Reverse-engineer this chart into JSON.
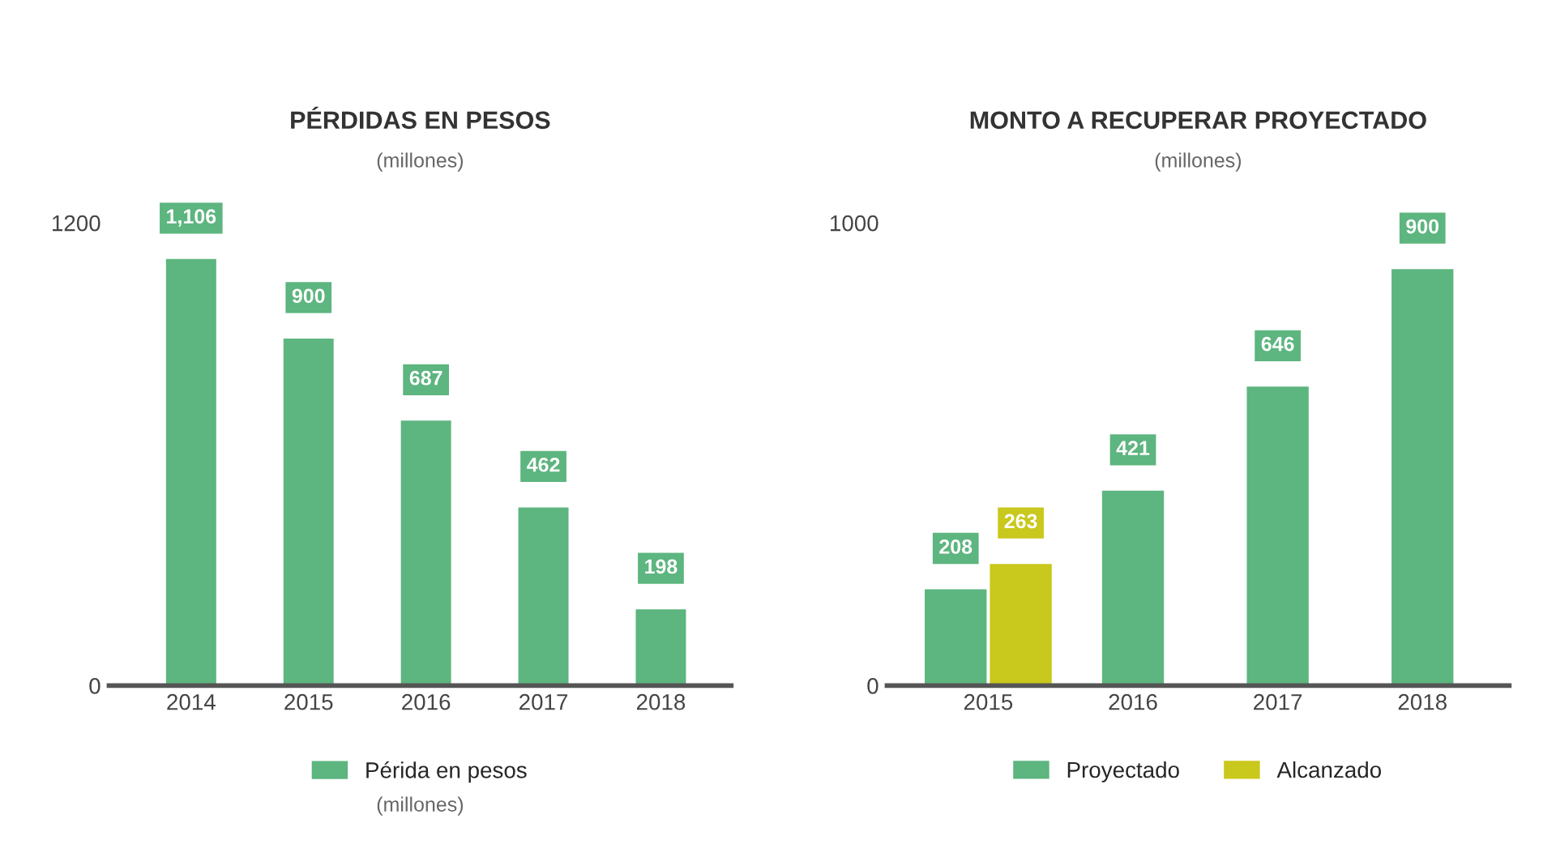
{
  "chart_data": [
    {
      "type": "bar",
      "title": "PÉRDIDAS EN PESOS",
      "subtitle": "(millones)",
      "categories": [
        "2014",
        "2015",
        "2016",
        "2017",
        "2018"
      ],
      "series": [
        {
          "name": "Périda en pesos",
          "color": "#5db57f",
          "values": [
            1106,
            900,
            687,
            462,
            198
          ],
          "value_labels": [
            "1,106",
            "900",
            "687",
            "462",
            "198"
          ]
        }
      ],
      "ylim": [
        0,
        1200
      ],
      "yticks": [
        0,
        1200
      ],
      "legend": "bottom",
      "grid": false,
      "annotations": [
        "(millones)"
      ]
    },
    {
      "type": "bar",
      "title": "MONTO A RECUPERAR PROYECTADO",
      "subtitle": "(millones)",
      "categories": [
        "2015",
        "2016",
        "2017",
        "2018"
      ],
      "series": [
        {
          "name": "Proyectado",
          "color": "#5db57f",
          "values": [
            208,
            421,
            646,
            900
          ]
        },
        {
          "name": "Alcanzado",
          "color": "#c9c81c",
          "values": [
            263,
            null,
            null,
            null
          ]
        }
      ],
      "ylim": [
        0,
        1000
      ],
      "yticks": [
        0,
        1000
      ],
      "legend": "bottom",
      "grid": false,
      "data_labels": true
    }
  ]
}
